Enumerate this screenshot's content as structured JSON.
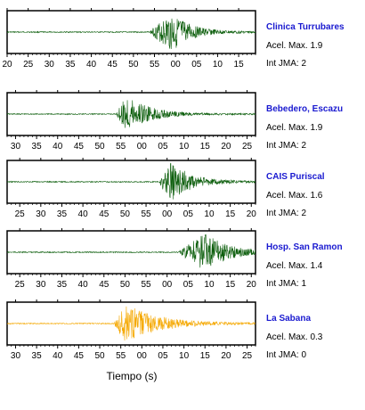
{
  "chart_data": {
    "type": "line",
    "xlabel": "Tiempo (s)",
    "panels": [
      {
        "name": "Clinica Turrubares",
        "accel_label": "Acel. Max.",
        "accel": "1.9",
        "jma_label": "Int JMA:",
        "jma": "2",
        "color": "#0b5d0b",
        "ticks": [
          "20",
          "25",
          "30",
          "35",
          "40",
          "45",
          "50",
          "55",
          "00",
          "05",
          "10",
          "15"
        ],
        "tick_start": 20,
        "event": {
          "onset": 54,
          "peak": 59,
          "duration": 13
        }
      },
      {
        "name": "Bebedero, Escazu",
        "accel_label": "Acel. Max.",
        "accel": "1.9",
        "jma_label": "Int JMA:",
        "jma": "2",
        "color": "#0b5d0b",
        "ticks": [
          "30",
          "35",
          "40",
          "45",
          "50",
          "55",
          "00",
          "05",
          "10",
          "15",
          "20",
          "25"
        ],
        "tick_start": 28,
        "event": {
          "onset": 54,
          "peak": 56.5,
          "duration": 14
        }
      },
      {
        "name": "CAIS Puriscal",
        "accel_label": "Acel. Max.",
        "accel": "1.6",
        "jma_label": "Int JMA:",
        "jma": "2",
        "color": "#0b5d0b",
        "ticks": [
          "25",
          "30",
          "35",
          "40",
          "45",
          "50",
          "55",
          "00",
          "05",
          "10",
          "15",
          "20"
        ],
        "tick_start": 22,
        "event": {
          "onset": 58,
          "peak": 61,
          "duration": 14
        }
      },
      {
        "name": "Hosp. San Ramon",
        "accel_label": "Acel. Max.",
        "accel": "1.4",
        "jma_label": "Int JMA:",
        "jma": "1",
        "color": "#0b5d0b",
        "ticks": [
          "25",
          "30",
          "35",
          "40",
          "45",
          "50",
          "55",
          "00",
          "05",
          "10",
          "15",
          "20"
        ],
        "tick_start": 22,
        "event": {
          "onset": 63,
          "peak": 69,
          "duration": 15
        }
      },
      {
        "name": "La Sabana",
        "accel_label": "Acel. Max.",
        "accel": "0.3",
        "jma_label": "Int JMA:",
        "jma": "0",
        "color": "#f5a800",
        "ticks": [
          "30",
          "35",
          "40",
          "45",
          "50",
          "55",
          "00",
          "05",
          "10",
          "15",
          "20",
          "25"
        ],
        "tick_start": 28,
        "event": {
          "onset": 53.5,
          "peak": 56,
          "duration": 22
        }
      }
    ]
  }
}
